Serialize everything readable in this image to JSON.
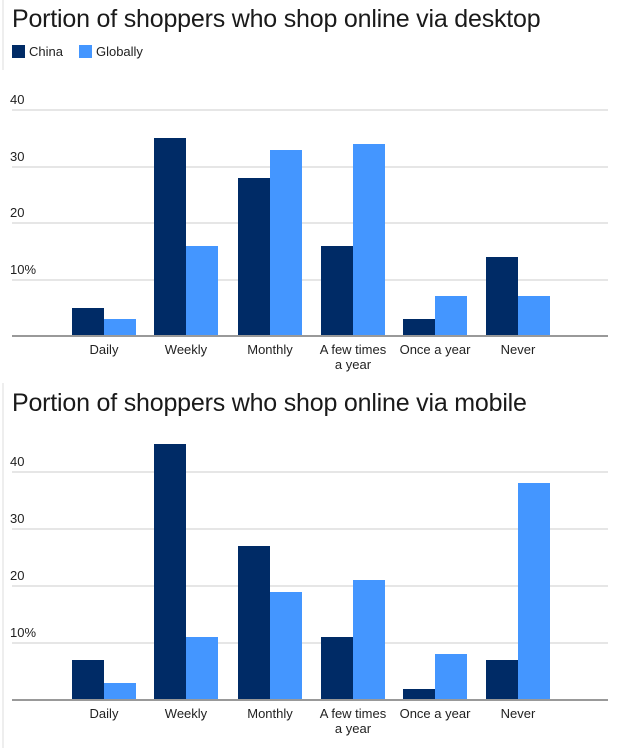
{
  "colors": {
    "china": "#002b66",
    "globally": "#4496ff"
  },
  "legend": [
    {
      "label": "China",
      "color": "#002b66"
    },
    {
      "label": "Globally",
      "color": "#4496ff"
    }
  ],
  "charts": [
    {
      "title": "Portion of shoppers who shop online via desktop",
      "yticks": [
        "40",
        "30",
        "20",
        "10%"
      ]
    },
    {
      "title": "Portion of shoppers who shop online via mobile",
      "yticks": [
        "40",
        "30",
        "20",
        "10%"
      ]
    }
  ],
  "categories": [
    "Daily",
    "Weekly",
    "Monthly",
    "A few times a year",
    "Once a year",
    "Never"
  ],
  "category_lines": [
    [
      "Daily"
    ],
    [
      "Weekly"
    ],
    [
      "Monthly"
    ],
    [
      "A few times",
      "a year"
    ],
    [
      "Once a year"
    ],
    [
      "Never"
    ]
  ],
  "chart_data": [
    {
      "type": "bar",
      "title": "Portion of shoppers who shop online via desktop",
      "categories": [
        "Daily",
        "Weekly",
        "Monthly",
        "A few times a year",
        "Once a year",
        "Never"
      ],
      "series": [
        {
          "name": "China",
          "values": [
            5,
            35,
            28,
            16,
            3,
            14
          ]
        },
        {
          "name": "Globally",
          "values": [
            3,
            16,
            33,
            34,
            7,
            7
          ]
        }
      ],
      "xlabel": "",
      "ylabel": "%",
      "ylim": [
        0,
        40
      ],
      "yticks": [
        10,
        20,
        30,
        40
      ],
      "grid": true,
      "legend_position": "top-left"
    },
    {
      "type": "bar",
      "title": "Portion of shoppers who shop online via mobile",
      "categories": [
        "Daily",
        "Weekly",
        "Monthly",
        "A few times a year",
        "Once a year",
        "Never"
      ],
      "series": [
        {
          "name": "China",
          "values": [
            7,
            45,
            27,
            11,
            2,
            7
          ]
        },
        {
          "name": "Globally",
          "values": [
            3,
            11,
            19,
            21,
            8,
            38
          ]
        }
      ],
      "xlabel": "",
      "ylabel": "%",
      "ylim": [
        0,
        45
      ],
      "yticks": [
        10,
        20,
        30,
        40
      ],
      "grid": true,
      "legend_position": "none"
    }
  ]
}
